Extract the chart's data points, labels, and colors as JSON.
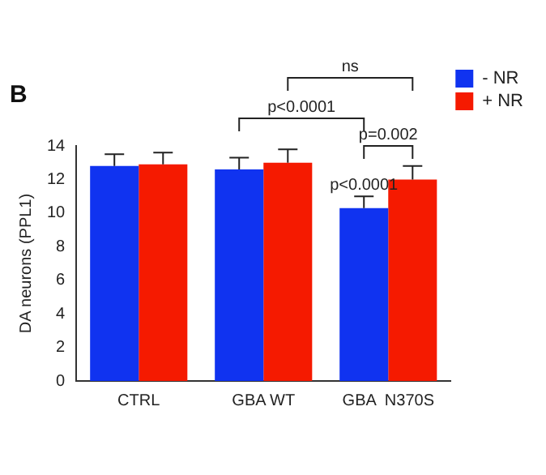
{
  "chart_data": {
    "type": "bar",
    "title": "B",
    "ylabel": "DA neurons (PPL1)",
    "categories": [
      "CTRL",
      "GBA WT",
      "GBA  N370S"
    ],
    "series": [
      {
        "name": "- NR",
        "color": "#1033f0",
        "values": [
          12.8,
          12.6,
          10.3
        ],
        "errors": [
          [
            12.8,
            13.5
          ],
          [
            12.6,
            13.3
          ],
          [
            10.3,
            11.0
          ]
        ]
      },
      {
        "name": "+ NR",
        "color": "#f51a00",
        "values": [
          12.9,
          13.0,
          12.0
        ],
        "errors": [
          [
            12.9,
            13.6
          ],
          [
            13.0,
            13.8
          ],
          [
            12.0,
            12.8
          ]
        ]
      }
    ],
    "ylim": [
      0,
      14
    ],
    "yticks": [
      0,
      2,
      4,
      6,
      8,
      10,
      12,
      14
    ],
    "grid": false,
    "legend": "top right",
    "annotations": [
      "ns",
      "p<0.0001",
      "p=0.002",
      "p<0.0001"
    ]
  }
}
